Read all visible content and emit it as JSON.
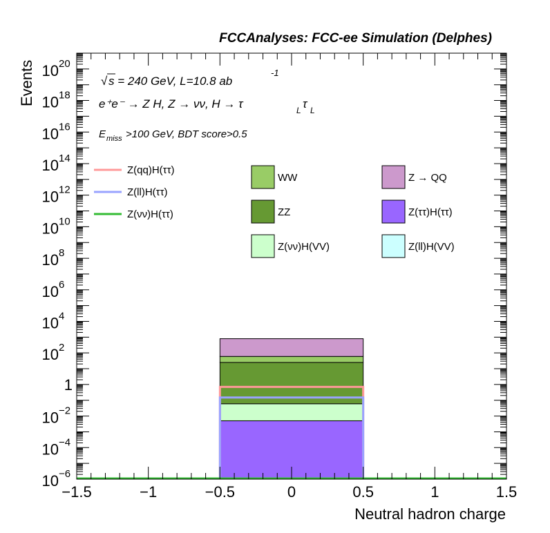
{
  "chart_data": {
    "type": "bar",
    "title": "FCCAnalyses: FCC-ee Simulation (Delphes)",
    "xlabel": "Neutral hadron charge",
    "ylabel": "Events",
    "xlim": [
      -1.5,
      1.5
    ],
    "ylim": [
      1e-06,
      1e+21
    ],
    "yscale": "log",
    "x_ticks": [
      "−1.5",
      "−1",
      "−0.5",
      "0",
      "0.5",
      "1",
      "1.5"
    ],
    "y_ticks": [
      {
        "base": "10",
        "exp": "20"
      },
      {
        "base": "10",
        "exp": "18"
      },
      {
        "base": "10",
        "exp": "16"
      },
      {
        "base": "10",
        "exp": "14"
      },
      {
        "base": "10",
        "exp": "12"
      },
      {
        "base": "10",
        "exp": "10"
      },
      {
        "base": "10",
        "exp": "8"
      },
      {
        "base": "10",
        "exp": "6"
      },
      {
        "base": "10",
        "exp": "4"
      },
      {
        "base": "10",
        "exp": "2"
      },
      {
        "base": "1",
        "exp": ""
      },
      {
        "base": "10",
        "exp": "−2"
      },
      {
        "base": "10",
        "exp": "−4"
      },
      {
        "base": "10",
        "exp": "−6"
      }
    ],
    "bin": [
      -0.5,
      0.5
    ],
    "stack": [
      {
        "name": "Z(ττ)H(ττ)",
        "color": "#9966ff",
        "upper": 0.005
      },
      {
        "name": "Z(νν)H(VV)",
        "color": "#ccffcc",
        "upper": 0.06
      },
      {
        "name": "ZZ",
        "color": "#669933",
        "upper": 25
      },
      {
        "name": "WW",
        "color": "#99cc66",
        "upper": 60
      },
      {
        "name": "Z → QQ",
        "color": "#cc99cc",
        "upper": 800
      }
    ],
    "lines": [
      {
        "name": "Z(qq)H(ττ)",
        "color": "#ff9999",
        "value": 0.7
      },
      {
        "name": "Z(ll)H(ττ)",
        "color": "#99a3ff",
        "value": 0.15
      },
      {
        "name": "Z(νν)H(ττ)",
        "color": "#33bb33",
        "value": 1e-06
      }
    ],
    "legend_lines": [
      {
        "name": "Z(qq)H(ττ)",
        "color": "#ff9999"
      },
      {
        "name": "Z(ll)H(ττ)",
        "color": "#99a3ff"
      },
      {
        "name": "Z(νν)H(ττ)",
        "color": "#33bb33"
      }
    ],
    "legend_boxes": [
      {
        "name": "WW",
        "color": "#99cc66"
      },
      {
        "name": "Z → QQ",
        "color": "#cc99cc"
      },
      {
        "name": "ZZ",
        "color": "#669933"
      },
      {
        "name": "Z(ττ)H(ττ)",
        "color": "#9966ff"
      },
      {
        "name": "Z(νν)H(VV)",
        "color": "#ccffcc"
      },
      {
        "name": "Z(ll)H(VV)",
        "color": "#ccffff"
      }
    ],
    "annotations": {
      "sqrt_symbol": "√",
      "energy": "s = 240 GeV, L=10.8 ab",
      "energy_exp": "-1",
      "process": "e⁺e⁻ → Z H, Z → νν, H → τ",
      "process_sub1": "L",
      "process_tau2": "τ",
      "process_sub2": "L",
      "cut_E": "E",
      "cut_sub": "miss",
      "cut_rest": ">100 GeV, BDT score>0.5"
    }
  }
}
